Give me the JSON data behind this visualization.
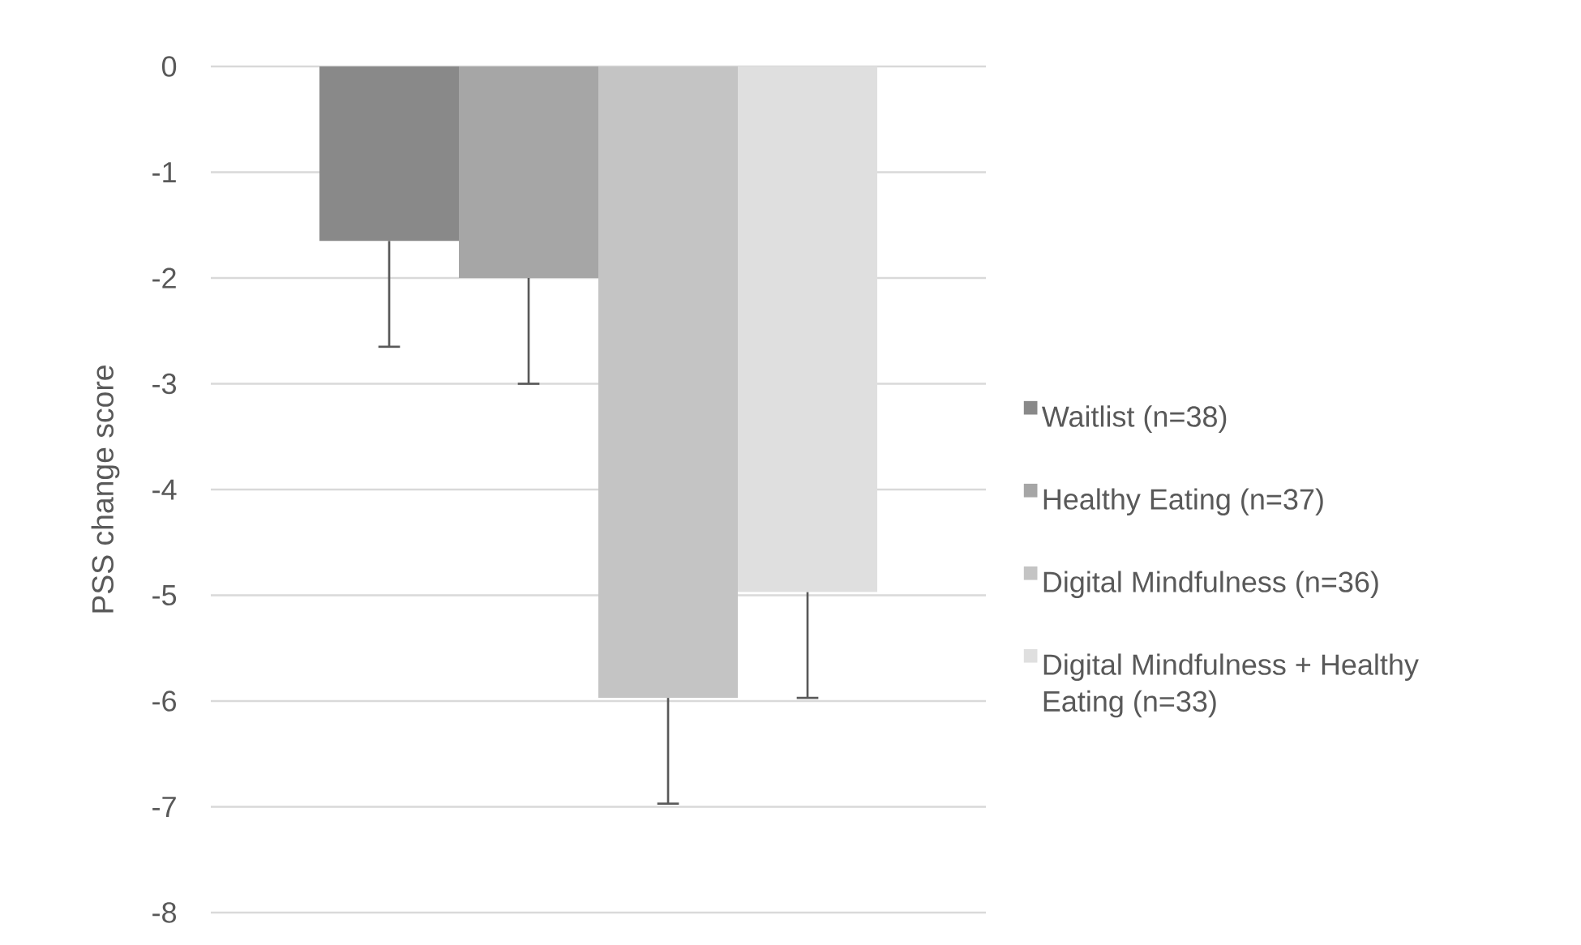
{
  "chart_data": {
    "type": "bar",
    "ylabel": "PSS change score",
    "categories": [
      null
    ],
    "series": [
      {
        "name": "Waitlist (n=38)",
        "color": "#898989",
        "values": [
          -1.65
        ],
        "errors": [
          [
            -2.65,
            -1.65
          ]
        ]
      },
      {
        "name": "Healthy Eating (n=37)",
        "color": "#a6a6a6",
        "values": [
          -2.0
        ],
        "errors": [
          [
            -3.0,
            -2.0
          ]
        ]
      },
      {
        "name": "Digital Mindfulness (n=36)",
        "color": "#c4c4c4",
        "values": [
          -5.97
        ],
        "errors": [
          [
            -6.97,
            -5.97
          ]
        ]
      },
      {
        "name": "Digital Mindfulness + Healthy Eating (n=33)",
        "color": "#dfdfdf",
        "values": [
          -4.97
        ],
        "errors": [
          [
            -5.97,
            -4.97
          ]
        ]
      }
    ],
    "ylim": [
      -8,
      0
    ],
    "yticks": [
      -8,
      -7,
      -6,
      -5,
      -4,
      -3,
      -2,
      -1,
      0
    ],
    "grid": "y",
    "legend": "right"
  }
}
